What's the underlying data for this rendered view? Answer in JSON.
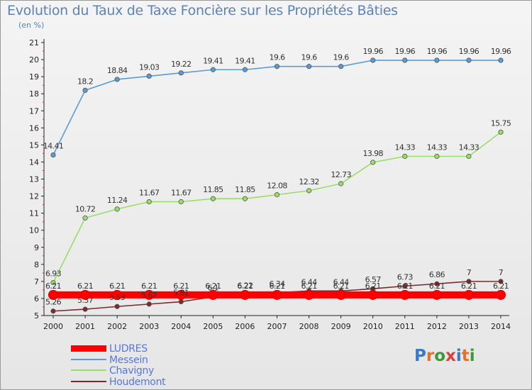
{
  "header": {
    "title": "Evolution du Taux de Taxe Foncière sur les Propriétés Bâties",
    "unit": "(en %)"
  },
  "logo": {
    "text": "Proxiti",
    "colors": [
      "#3a78c8",
      "#e8702a",
      "#3a9a3a",
      "#d84040"
    ]
  },
  "chart_data": {
    "type": "line",
    "title": "Evolution du Taux de Taxe Foncière sur les Propriétés Bâties",
    "ylabel": "(en %)",
    "ylim": [
      5,
      21
    ],
    "yticks": [
      5,
      6,
      7,
      8,
      9,
      10,
      11,
      12,
      13,
      14,
      15,
      16,
      17,
      18,
      19,
      20,
      21
    ],
    "grid": false,
    "legend_position": "bottom-left",
    "x": [
      2000,
      2001,
      2002,
      2003,
      2004,
      2005,
      2006,
      2007,
      2008,
      2009,
      2010,
      2011,
      2012,
      2013,
      2014
    ],
    "series": [
      {
        "name": "LUDRES",
        "color": "#ff0000",
        "values": [
          6.21,
          6.21,
          6.21,
          6.21,
          6.21,
          6.21,
          6.21,
          6.21,
          6.21,
          6.21,
          6.21,
          6.21,
          6.21,
          6.21,
          6.21
        ]
      },
      {
        "name": "Messein",
        "color": "#5b9bd5",
        "values": [
          14.41,
          18.2,
          18.84,
          19.03,
          19.22,
          19.41,
          19.41,
          19.6,
          19.6,
          19.6,
          19.96,
          19.96,
          19.96,
          19.96,
          19.96
        ]
      },
      {
        "name": "Chavigny",
        "color": "#99dd66",
        "values": [
          6.93,
          10.72,
          11.24,
          11.67,
          11.67,
          11.85,
          11.85,
          12.08,
          12.32,
          12.73,
          13.98,
          14.33,
          14.33,
          14.33,
          15.75
        ]
      },
      {
        "name": "Houdemont",
        "color": "#7a2a2a",
        "values": [
          5.26,
          5.37,
          5.53,
          5.67,
          5.81,
          6.1,
          6.22,
          6.34,
          6.44,
          6.44,
          6.57,
          6.73,
          6.86,
          7,
          7
        ]
      }
    ]
  }
}
